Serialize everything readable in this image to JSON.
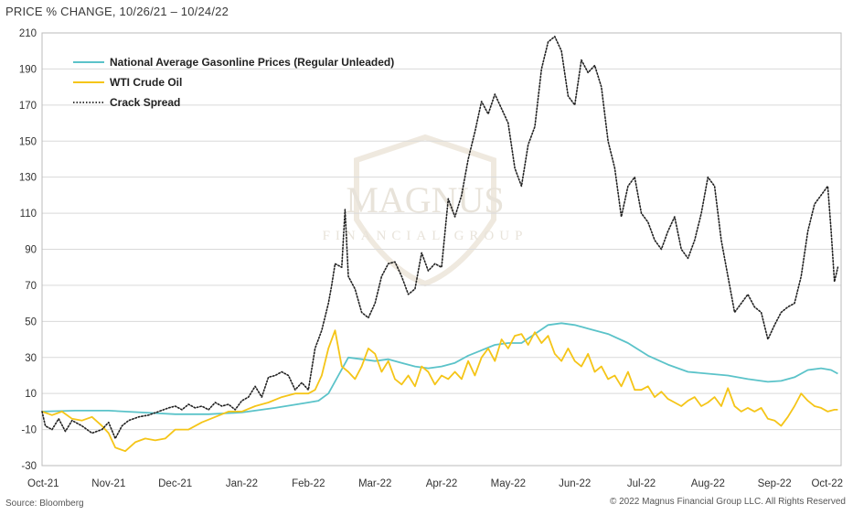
{
  "header": {
    "title": "PRICE % CHANGE, 10/26/21 – 10/24/22"
  },
  "footer": {
    "source": "Source: Bloomberg",
    "copyright": "© 2022 Magnus Financial Group LLC. All Rights Reserved"
  },
  "watermark": {
    "line1": "MAGNUS",
    "line2": "FINANCIAL GROUP"
  },
  "colors": {
    "gasoline": "#5bc3c9",
    "wti": "#f5c518",
    "crack": "#222222",
    "grid": "#d9d9d9"
  },
  "chart_data": {
    "type": "line",
    "title": "PRICE % CHANGE, 10/26/21 – 10/24/22",
    "xlabel": "",
    "ylabel": "",
    "xlim": [
      0,
      12.0
    ],
    "ylim": [
      -30,
      210
    ],
    "y_ticks": [
      -30,
      -10,
      10,
      30,
      50,
      70,
      90,
      110,
      130,
      150,
      170,
      190,
      210
    ],
    "x_ticks": [
      {
        "pos": 0,
        "label": "Oct-21"
      },
      {
        "pos": 1,
        "label": "Nov-21"
      },
      {
        "pos": 2,
        "label": "Dec-21"
      },
      {
        "pos": 3,
        "label": "Jan-22"
      },
      {
        "pos": 4,
        "label": "Feb-22"
      },
      {
        "pos": 5,
        "label": "Mar-22"
      },
      {
        "pos": 6,
        "label": "Apr-22"
      },
      {
        "pos": 7,
        "label": "May-22"
      },
      {
        "pos": 8,
        "label": "Jun-22"
      },
      {
        "pos": 9,
        "label": "Jul-22"
      },
      {
        "pos": 10,
        "label": "Aug-22"
      },
      {
        "pos": 11,
        "label": "Sep-22"
      },
      {
        "pos": 12,
        "label": "Oct-22"
      }
    ],
    "grid": "horizontal",
    "legend": "top-left",
    "series": [
      {
        "name": "National Average Gasonline Prices (Regular Unleaded)",
        "style": "solid",
        "color": "#5bc3c9",
        "points": [
          [
            0,
            0
          ],
          [
            0.5,
            0.5
          ],
          [
            1.0,
            0.5
          ],
          [
            1.5,
            -0.5
          ],
          [
            2.0,
            -1.5
          ],
          [
            2.5,
            -1.5
          ],
          [
            3.0,
            -0.5
          ],
          [
            3.5,
            2
          ],
          [
            4.0,
            5
          ],
          [
            4.15,
            6
          ],
          [
            4.3,
            10
          ],
          [
            4.45,
            20
          ],
          [
            4.6,
            30
          ],
          [
            4.8,
            29
          ],
          [
            5.0,
            28
          ],
          [
            5.2,
            29
          ],
          [
            5.4,
            27
          ],
          [
            5.6,
            25
          ],
          [
            5.8,
            24
          ],
          [
            6.0,
            25
          ],
          [
            6.2,
            27
          ],
          [
            6.4,
            31
          ],
          [
            6.6,
            34
          ],
          [
            6.8,
            37
          ],
          [
            7.0,
            38
          ],
          [
            7.2,
            38
          ],
          [
            7.4,
            43
          ],
          [
            7.6,
            48
          ],
          [
            7.8,
            49
          ],
          [
            8.0,
            48
          ],
          [
            8.2,
            46
          ],
          [
            8.5,
            43
          ],
          [
            8.8,
            38
          ],
          [
            9.1,
            31
          ],
          [
            9.4,
            26
          ],
          [
            9.7,
            22
          ],
          [
            10.0,
            21
          ],
          [
            10.3,
            20
          ],
          [
            10.6,
            18
          ],
          [
            10.9,
            16.5
          ],
          [
            11.1,
            17
          ],
          [
            11.3,
            19
          ],
          [
            11.5,
            23
          ],
          [
            11.7,
            24
          ],
          [
            11.85,
            23
          ],
          [
            11.95,
            21
          ]
        ]
      },
      {
        "name": "WTI Crude Oil",
        "style": "solid",
        "color": "#f5c518",
        "points": [
          [
            0,
            0
          ],
          [
            0.15,
            -2
          ],
          [
            0.3,
            0
          ],
          [
            0.45,
            -4
          ],
          [
            0.6,
            -5
          ],
          [
            0.75,
            -3
          ],
          [
            0.9,
            -8
          ],
          [
            1.0,
            -12
          ],
          [
            1.1,
            -20
          ],
          [
            1.25,
            -22
          ],
          [
            1.4,
            -17
          ],
          [
            1.55,
            -15
          ],
          [
            1.7,
            -16
          ],
          [
            1.85,
            -15
          ],
          [
            2.0,
            -10
          ],
          [
            2.2,
            -10
          ],
          [
            2.4,
            -6
          ],
          [
            2.6,
            -3
          ],
          [
            2.8,
            0
          ],
          [
            3.0,
            0
          ],
          [
            3.2,
            3
          ],
          [
            3.4,
            5
          ],
          [
            3.6,
            8
          ],
          [
            3.8,
            10
          ],
          [
            4.0,
            10
          ],
          [
            4.1,
            12
          ],
          [
            4.2,
            20
          ],
          [
            4.3,
            35
          ],
          [
            4.4,
            45
          ],
          [
            4.5,
            25
          ],
          [
            4.6,
            22
          ],
          [
            4.7,
            18
          ],
          [
            4.8,
            25
          ],
          [
            4.9,
            35
          ],
          [
            5.0,
            32
          ],
          [
            5.1,
            22
          ],
          [
            5.2,
            28
          ],
          [
            5.3,
            18
          ],
          [
            5.4,
            15
          ],
          [
            5.5,
            20
          ],
          [
            5.6,
            14
          ],
          [
            5.7,
            25
          ],
          [
            5.8,
            22
          ],
          [
            5.9,
            15
          ],
          [
            6.0,
            20
          ],
          [
            6.1,
            18
          ],
          [
            6.2,
            22
          ],
          [
            6.3,
            18
          ],
          [
            6.4,
            28
          ],
          [
            6.5,
            20
          ],
          [
            6.6,
            30
          ],
          [
            6.7,
            35
          ],
          [
            6.8,
            28
          ],
          [
            6.9,
            40
          ],
          [
            7.0,
            35
          ],
          [
            7.1,
            42
          ],
          [
            7.2,
            43
          ],
          [
            7.3,
            37
          ],
          [
            7.4,
            44
          ],
          [
            7.5,
            38
          ],
          [
            7.6,
            42
          ],
          [
            7.7,
            32
          ],
          [
            7.8,
            28
          ],
          [
            7.9,
            35
          ],
          [
            8.0,
            28
          ],
          [
            8.1,
            25
          ],
          [
            8.2,
            32
          ],
          [
            8.3,
            22
          ],
          [
            8.4,
            25
          ],
          [
            8.5,
            18
          ],
          [
            8.6,
            20
          ],
          [
            8.7,
            14
          ],
          [
            8.8,
            22
          ],
          [
            8.9,
            12
          ],
          [
            9.0,
            12
          ],
          [
            9.1,
            14
          ],
          [
            9.2,
            8
          ],
          [
            9.3,
            11
          ],
          [
            9.4,
            7
          ],
          [
            9.5,
            5
          ],
          [
            9.6,
            3
          ],
          [
            9.7,
            6
          ],
          [
            9.8,
            8
          ],
          [
            9.9,
            3
          ],
          [
            10.0,
            5
          ],
          [
            10.1,
            8
          ],
          [
            10.2,
            3
          ],
          [
            10.3,
            13
          ],
          [
            10.4,
            3
          ],
          [
            10.5,
            0
          ],
          [
            10.6,
            2
          ],
          [
            10.7,
            0
          ],
          [
            10.8,
            2
          ],
          [
            10.9,
            -4
          ],
          [
            11.0,
            -5
          ],
          [
            11.1,
            -8
          ],
          [
            11.2,
            -3
          ],
          [
            11.3,
            3
          ],
          [
            11.4,
            10
          ],
          [
            11.5,
            6
          ],
          [
            11.6,
            3
          ],
          [
            11.7,
            2
          ],
          [
            11.8,
            0
          ],
          [
            11.9,
            1
          ],
          [
            11.95,
            1
          ]
        ]
      },
      {
        "name": "Crack Spread",
        "style": "dotted",
        "color": "#222222",
        "points": [
          [
            0,
            0
          ],
          [
            0.05,
            -8
          ],
          [
            0.15,
            -10
          ],
          [
            0.25,
            -4
          ],
          [
            0.35,
            -11
          ],
          [
            0.45,
            -5
          ],
          [
            0.6,
            -8
          ],
          [
            0.75,
            -12
          ],
          [
            0.9,
            -10
          ],
          [
            1.0,
            -6
          ],
          [
            1.1,
            -15
          ],
          [
            1.2,
            -8
          ],
          [
            1.3,
            -5
          ],
          [
            1.45,
            -3
          ],
          [
            1.6,
            -2
          ],
          [
            1.75,
            0
          ],
          [
            1.9,
            2
          ],
          [
            2.0,
            3
          ],
          [
            2.1,
            1
          ],
          [
            2.2,
            4
          ],
          [
            2.3,
            2
          ],
          [
            2.4,
            3
          ],
          [
            2.5,
            1
          ],
          [
            2.6,
            5
          ],
          [
            2.7,
            3
          ],
          [
            2.8,
            4
          ],
          [
            2.9,
            1
          ],
          [
            3.0,
            6
          ],
          [
            3.1,
            8
          ],
          [
            3.2,
            14
          ],
          [
            3.3,
            8
          ],
          [
            3.4,
            19
          ],
          [
            3.5,
            20
          ],
          [
            3.6,
            22
          ],
          [
            3.7,
            20
          ],
          [
            3.8,
            12
          ],
          [
            3.9,
            16
          ],
          [
            4.0,
            12
          ],
          [
            4.1,
            35
          ],
          [
            4.2,
            45
          ],
          [
            4.3,
            60
          ],
          [
            4.35,
            70
          ],
          [
            4.4,
            82
          ],
          [
            4.5,
            80
          ],
          [
            4.55,
            112
          ],
          [
            4.6,
            75
          ],
          [
            4.7,
            68
          ],
          [
            4.8,
            55
          ],
          [
            4.9,
            52
          ],
          [
            5.0,
            60
          ],
          [
            5.1,
            75
          ],
          [
            5.2,
            82
          ],
          [
            5.3,
            83
          ],
          [
            5.4,
            75
          ],
          [
            5.5,
            65
          ],
          [
            5.6,
            68
          ],
          [
            5.7,
            88
          ],
          [
            5.8,
            78
          ],
          [
            5.9,
            82
          ],
          [
            6.0,
            80
          ],
          [
            6.1,
            118
          ],
          [
            6.2,
            108
          ],
          [
            6.3,
            120
          ],
          [
            6.4,
            140
          ],
          [
            6.5,
            155
          ],
          [
            6.6,
            172
          ],
          [
            6.7,
            165
          ],
          [
            6.8,
            176
          ],
          [
            6.9,
            168
          ],
          [
            7.0,
            160
          ],
          [
            7.1,
            135
          ],
          [
            7.2,
            125
          ],
          [
            7.3,
            148
          ],
          [
            7.4,
            158
          ],
          [
            7.5,
            190
          ],
          [
            7.6,
            205
          ],
          [
            7.7,
            208
          ],
          [
            7.8,
            200
          ],
          [
            7.9,
            175
          ],
          [
            8.0,
            170
          ],
          [
            8.1,
            195
          ],
          [
            8.2,
            188
          ],
          [
            8.3,
            192
          ],
          [
            8.4,
            180
          ],
          [
            8.5,
            150
          ],
          [
            8.6,
            135
          ],
          [
            8.7,
            108
          ],
          [
            8.8,
            125
          ],
          [
            8.9,
            130
          ],
          [
            9.0,
            110
          ],
          [
            9.1,
            105
          ],
          [
            9.2,
            95
          ],
          [
            9.3,
            90
          ],
          [
            9.4,
            100
          ],
          [
            9.5,
            108
          ],
          [
            9.6,
            90
          ],
          [
            9.7,
            85
          ],
          [
            9.8,
            95
          ],
          [
            9.9,
            110
          ],
          [
            10.0,
            130
          ],
          [
            10.1,
            125
          ],
          [
            10.2,
            95
          ],
          [
            10.3,
            75
          ],
          [
            10.4,
            55
          ],
          [
            10.5,
            60
          ],
          [
            10.6,
            65
          ],
          [
            10.7,
            58
          ],
          [
            10.8,
            55
          ],
          [
            10.9,
            40
          ],
          [
            11.0,
            48
          ],
          [
            11.1,
            55
          ],
          [
            11.2,
            58
          ],
          [
            11.3,
            60
          ],
          [
            11.4,
            75
          ],
          [
            11.5,
            100
          ],
          [
            11.6,
            115
          ],
          [
            11.7,
            120
          ],
          [
            11.8,
            125
          ],
          [
            11.85,
            100
          ],
          [
            11.9,
            72
          ],
          [
            11.95,
            80
          ]
        ]
      }
    ]
  }
}
